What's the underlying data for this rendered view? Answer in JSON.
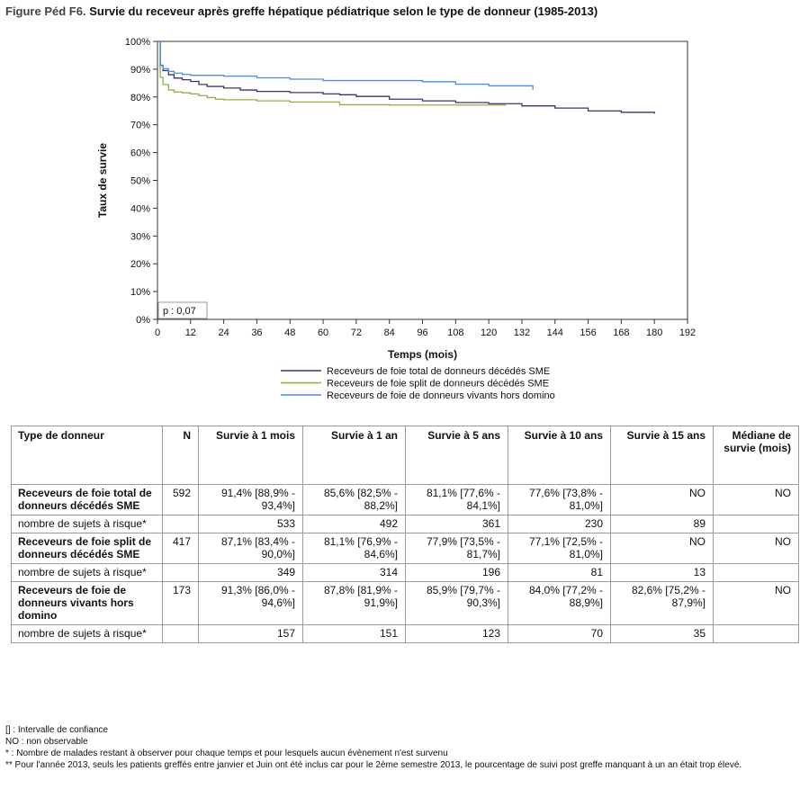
{
  "figure": {
    "label": "Figure Péd F6.",
    "title": "Survie du receveur après greffe hépatique pédiatrique selon le type de donneur (1985-2013)"
  },
  "chart_data": {
    "type": "line",
    "xlabel": "Temps (mois)",
    "ylabel": "Taux de survie",
    "xlim": [
      0,
      192
    ],
    "ylim": [
      0,
      100
    ],
    "x_ticks": [
      0,
      12,
      24,
      36,
      48,
      60,
      72,
      84,
      96,
      108,
      120,
      132,
      144,
      156,
      168,
      180,
      192
    ],
    "y_ticks": [
      0,
      10,
      20,
      30,
      40,
      50,
      60,
      70,
      80,
      90,
      100
    ],
    "y_tick_labels": [
      "0%",
      "10%",
      "20%",
      "30%",
      "40%",
      "50%",
      "60%",
      "70%",
      "80%",
      "90%",
      "100%"
    ],
    "annotation": "p : 0,07",
    "legend_position": "bottom",
    "grid": false,
    "series": [
      {
        "name": "Receveurs de foie total de donneurs décédés SME",
        "color": "#3b3370",
        "x": [
          0,
          1,
          2,
          4,
          6,
          9,
          12,
          15,
          18,
          24,
          30,
          36,
          48,
          60,
          66,
          72,
          84,
          96,
          108,
          120,
          132,
          144,
          156,
          168,
          180
        ],
        "y": [
          100,
          91.4,
          89.5,
          88,
          86.8,
          86.2,
          85.6,
          84.5,
          83.8,
          83.2,
          82.5,
          82,
          81.6,
          81.1,
          80.8,
          80.2,
          79.2,
          78.6,
          78.0,
          77.6,
          76.8,
          76.0,
          75.0,
          74.5,
          74.0
        ]
      },
      {
        "name": "Receveurs de foie split de donneurs décédés SME",
        "color": "#8ab04a",
        "x": [
          0,
          1,
          2,
          4,
          6,
          9,
          12,
          15,
          18,
          21,
          24,
          36,
          48,
          66,
          84,
          108,
          120,
          126
        ],
        "y": [
          100,
          87.1,
          84.5,
          82.5,
          81.8,
          81.5,
          81.1,
          80.5,
          79.8,
          79.2,
          79.0,
          78.6,
          78.2,
          77.2,
          77.1,
          77.1,
          77.1,
          76.8
        ]
      },
      {
        "name": "Receveurs de foie de donneurs vivants hors domino",
        "color": "#4a8ee0",
        "x": [
          0,
          1,
          2,
          4,
          6,
          9,
          12,
          24,
          36,
          48,
          60,
          84,
          96,
          108,
          120,
          132,
          136
        ],
        "y": [
          100,
          91.3,
          90.2,
          89.2,
          88.6,
          88.1,
          87.8,
          87.5,
          86.9,
          86.4,
          85.9,
          85.9,
          85.5,
          84.6,
          84.0,
          84.0,
          82.6
        ]
      }
    ]
  },
  "table": {
    "headers": [
      "Type de donneur",
      "N",
      "Survie à 1 mois",
      "Survie à 1 an",
      "Survie à 5 ans",
      "Survie à 10 ans",
      "Survie à 15 ans",
      "Médiane de survie (mois)"
    ],
    "rows": [
      {
        "label": "Receveurs de foie total de donneurs décédés SME",
        "n": "592",
        "cells": [
          "91,4% [88,9% - 93,4%]",
          "85,6% [82,5% - 88,2%]",
          "81,1% [77,6% - 84,1%]",
          "77,6% [73,8% - 81,0%]",
          "NO",
          "NO"
        ],
        "risk_label": "nombre de sujets à risque*",
        "risk": [
          "533",
          "492",
          "361",
          "230",
          "89",
          ""
        ]
      },
      {
        "label": "Receveurs de foie split de donneurs décédés SME",
        "n": "417",
        "cells": [
          "87,1% [83,4% - 90,0%]",
          "81,1% [76,9% - 84,6%]",
          "77,9% [73,5% - 81,7%]",
          "77,1% [72,5% - 81,0%]",
          "NO",
          "NO"
        ],
        "risk_label": "nombre de sujets à risque*",
        "risk": [
          "349",
          "314",
          "196",
          "81",
          "13",
          ""
        ]
      },
      {
        "label": "Receveurs de foie de donneurs vivants hors domino",
        "n": "173",
        "cells": [
          "91,3% [86,0% - 94,6%]",
          "87,8% [81,9% - 91,9%]",
          "85,9% [79,7% - 90,3%]",
          "84,0% [77,2% - 88,9%]",
          "82,6% [75,2% - 87,9%]",
          "NO"
        ],
        "risk_label": "nombre de sujets à risque*",
        "risk": [
          "157",
          "151",
          "123",
          "70",
          "35",
          ""
        ]
      }
    ]
  },
  "notes": [
    "[] : Intervalle de confiance",
    "NO : non observable",
    "* : Nombre de malades restant à observer pour chaque temps et pour lesquels aucun évènement n'est survenu",
    "** Pour l'année 2013, seuls les patients greffés entre janvier et Juin ont été inclus car pour le 2ème semestre 2013, le pourcentage de suivi post greffe manquant à un an était trop élevé."
  ]
}
